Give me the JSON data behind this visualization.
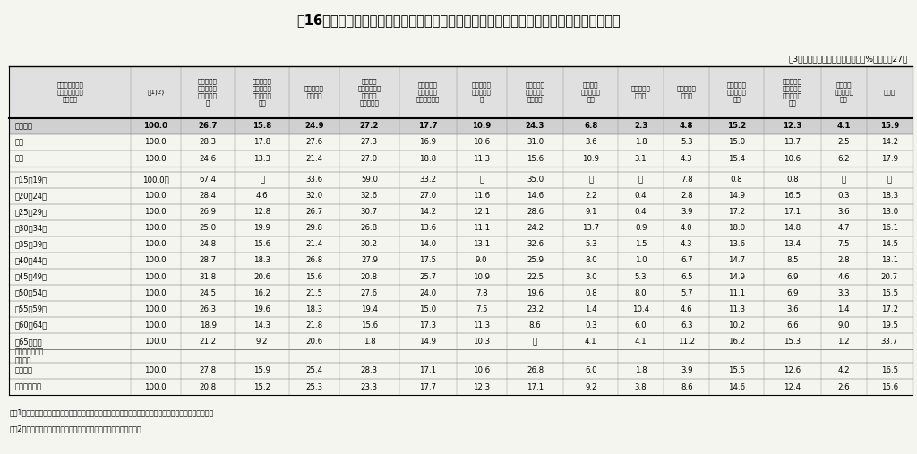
{
  "title": "表16　性・年齢階級・現在の勤め先の就業形態、自己都合による離職の理由別転職者割合",
  "subtitle_right": "（3つまでの複数回答）　（単位：%）　平成27年",
  "note1": "注：1）「計」は「自己都合により前の会社を辞めた」転職者であり、離職の理由が不明の転職者を含む。",
  "note2": "　　2）「＊」はサンプル数が少ないものであるので注意を要する。",
  "col_headers": [
    "性・年齢階級・\n現在の勤め先の\n就業形態",
    "計1)2)",
    "満足のいく\n仕事内容で\nなかったか\nら",
    "能力・実績\nが正当に評\n価されない\nから",
    "賃金が低か\nったから",
    "労働条件\n（賃金以外）\nがよくな\nかったから",
    "人間関係が\nうまくいか\nなかったから",
    "雇用が不安\n定だったた\nめ",
    "会社の将来\nに不安を感\nじたから",
    "結婚・出\n産・育児の\nため",
    "介護・看護\nのため",
    "病気・怪我\nのため",
    "他によい仕\n事があった\nから",
    "いろいろな\n会社で経験\nを積みたい\nから",
    "家族の転\n職・転居の\nため",
    "その他"
  ],
  "rows": [
    {
      "label": "総　　数",
      "bold": true,
      "values": [
        "100.0",
        "26.7",
        "15.8",
        "24.9",
        "27.2",
        "17.7",
        "10.9",
        "24.3",
        "6.8",
        "2.3",
        "4.8",
        "15.2",
        "12.3",
        "4.1",
        "15.9"
      ]
    },
    {
      "label": "　男",
      "bold": false,
      "values": [
        "100.0",
        "28.3",
        "17.8",
        "27.6",
        "27.3",
        "16.9",
        "10.6",
        "31.0",
        "3.6",
        "1.8",
        "5.3",
        "15.0",
        "13.7",
        "2.5",
        "14.2"
      ]
    },
    {
      "label": "　女",
      "bold": false,
      "values": [
        "100.0",
        "24.6",
        "13.3",
        "21.4",
        "27.0",
        "18.8",
        "11.3",
        "15.6",
        "10.9",
        "3.1",
        "4.3",
        "15.4",
        "10.6",
        "6.2",
        "17.9"
      ]
    },
    {
      "label": "",
      "bold": false,
      "values": [
        "",
        "",
        "",
        "",
        "",
        "",
        "",
        "",
        "",
        "",
        "",
        "",
        "",
        "",
        ""
      ]
    },
    {
      "label": "　15～19歳",
      "bold": false,
      "values": [
        "100.0＊",
        "67.4",
        "－",
        "33.6",
        "59.0",
        "33.2",
        "－",
        "35.0",
        "－",
        "－",
        "7.8",
        "0.8",
        "0.8",
        "－",
        "－"
      ]
    },
    {
      "label": "　20～24歳",
      "bold": false,
      "values": [
        "100.0",
        "28.4",
        "4.6",
        "32.0",
        "32.6",
        "27.0",
        "11.6",
        "14.6",
        "2.2",
        "0.4",
        "2.8",
        "14.9",
        "16.5",
        "0.3",
        "18.3"
      ]
    },
    {
      "label": "　25～29歳",
      "bold": false,
      "values": [
        "100.0",
        "26.9",
        "12.8",
        "26.7",
        "30.7",
        "14.2",
        "12.1",
        "28.6",
        "9.1",
        "0.4",
        "3.9",
        "17.2",
        "17.1",
        "3.6",
        "13.0"
      ]
    },
    {
      "label": "　30～34歳",
      "bold": false,
      "values": [
        "100.0",
        "25.0",
        "19.9",
        "29.8",
        "26.8",
        "13.6",
        "11.1",
        "24.2",
        "13.7",
        "0.9",
        "4.0",
        "18.0",
        "14.8",
        "4.7",
        "16.1"
      ]
    },
    {
      "label": "　35～39歳",
      "bold": false,
      "values": [
        "100.0",
        "24.8",
        "15.6",
        "21.4",
        "30.2",
        "14.0",
        "13.1",
        "32.6",
        "5.3",
        "1.5",
        "4.3",
        "13.6",
        "13.4",
        "7.5",
        "14.5"
      ]
    },
    {
      "label": "　40～44歳",
      "bold": false,
      "values": [
        "100.0",
        "28.7",
        "18.3",
        "26.8",
        "27.9",
        "17.5",
        "9.0",
        "25.9",
        "8.0",
        "1.0",
        "6.7",
        "14.7",
        "8.5",
        "2.8",
        "13.1"
      ]
    },
    {
      "label": "　45～49歳",
      "bold": false,
      "values": [
        "100.0",
        "31.8",
        "20.6",
        "15.6",
        "20.8",
        "25.7",
        "10.9",
        "22.5",
        "3.0",
        "5.3",
        "6.5",
        "14.9",
        "6.9",
        "4.6",
        "20.7"
      ]
    },
    {
      "label": "　50～54歳",
      "bold": false,
      "values": [
        "100.0",
        "24.5",
        "16.2",
        "21.5",
        "27.6",
        "24.0",
        "7.8",
        "19.6",
        "0.8",
        "8.0",
        "5.7",
        "11.1",
        "6.9",
        "3.3",
        "15.5"
      ]
    },
    {
      "label": "　55～59歳",
      "bold": false,
      "values": [
        "100.0",
        "26.3",
        "19.6",
        "18.3",
        "19.4",
        "15.0",
        "7.5",
        "23.2",
        "1.4",
        "10.4",
        "4.6",
        "11.3",
        "3.6",
        "1.4",
        "17.2"
      ]
    },
    {
      "label": "　60～64歳",
      "bold": false,
      "values": [
        "100.0",
        "18.9",
        "14.3",
        "21.8",
        "15.6",
        "17.3",
        "11.3",
        "8.6",
        "0.3",
        "6.0",
        "6.3",
        "10.2",
        "6.6",
        "9.0",
        "19.5"
      ]
    },
    {
      "label": "　65歳以上",
      "bold": false,
      "values": [
        "100.0",
        "21.2",
        "9.2",
        "20.6",
        "1.8",
        "14.9",
        "10.3",
        "－",
        "4.1",
        "4.1",
        "11.2",
        "16.2",
        "15.3",
        "1.2",
        "33.7"
      ]
    },
    {
      "label": "現在の勤め先の\n就業形態",
      "bold": true,
      "section": true,
      "values": [
        "",
        "",
        "",
        "",
        "",
        "",
        "",
        "",
        "",
        "",
        "",
        "",
        "",
        "",
        ""
      ]
    },
    {
      "label": "　正社員",
      "bold": false,
      "values": [
        "100.0",
        "27.8",
        "15.9",
        "25.4",
        "28.3",
        "17.1",
        "10.6",
        "26.8",
        "6.0",
        "1.8",
        "3.9",
        "15.5",
        "12.6",
        "4.2",
        "16.5"
      ]
    },
    {
      "label": "　正社員以外",
      "bold": false,
      "values": [
        "100.0",
        "20.8",
        "15.2",
        "25.3",
        "23.3",
        "17.7",
        "12.3",
        "17.1",
        "9.2",
        "3.8",
        "8.6",
        "14.6",
        "12.4",
        "2.6",
        "15.6"
      ]
    }
  ],
  "bg_color": "#f5f5f0",
  "header_bg": "#e8e8e8",
  "bold_row_bg": "#d8d8d8"
}
